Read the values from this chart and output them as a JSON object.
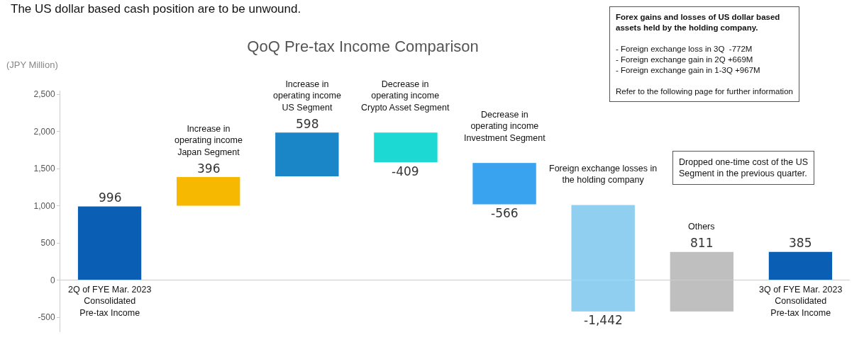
{
  "chart_data": {
    "type": "bar",
    "title": "QoQ Pre-tax Income Comparison",
    "ylabel": "(JPY Million)",
    "categories": [
      "2Q of FYE Mar. 2023\nConsolidated\nPre-tax Income",
      "Increase in\noperating income\nJapan Segment",
      "Increase in\noperating income\nUS Segment",
      "Decrease in\noperating income\nCrypto Asset Segment",
      "Decrease in\noperating income\nInvestment Segment",
      "Foreign exchange losses in\nthe holding company",
      "Others",
      "3Q of FYE Mar. 2023\nConsolidated\nPre-tax Income"
    ],
    "values": [
      996,
      396,
      598,
      -409,
      -566,
      -1442,
      811,
      385
    ],
    "base": [
      0,
      996,
      1392,
      1990,
      1581,
      1015,
      -427,
      0
    ],
    "colors": [
      "#0a5fb4",
      "#f6b800",
      "#1a86c8",
      "#1dd9d3",
      "#3aa3f0",
      "#90cff0",
      "#bfbfbf",
      "#0a5fb4"
    ],
    "value_labels": [
      "996",
      "396",
      "598",
      "-409",
      "-566",
      "-1,442",
      "811",
      "385"
    ],
    "ylim": [
      -700,
      2550
    ],
    "yticks": [
      {
        "value": -500,
        "label": "-500"
      },
      0,
      {
        "value": 500,
        "label": "500"
      },
      {
        "value": 1000,
        "label": "1,000"
      },
      {
        "value": 1500,
        "label": "1,500"
      },
      {
        "value": 2000,
        "label": "2,000"
      },
      {
        "value": 2500,
        "label": "2,500"
      }
    ],
    "grid": false,
    "annotations": [
      "The US dollar based cash position are to be unwound.",
      "Forex gains and losses of US dollar based\nassets held by the holding company.\n\n- Foreign exchange loss in 3Q  -772M\n- Foreign exchange gain in 2Q +669M\n- Foreign exchange gain in 1-3Q +967M\n\nRefer to the following page for further information",
      "Dropped one-time cost of the US\nSegment in the previous quarter."
    ]
  }
}
